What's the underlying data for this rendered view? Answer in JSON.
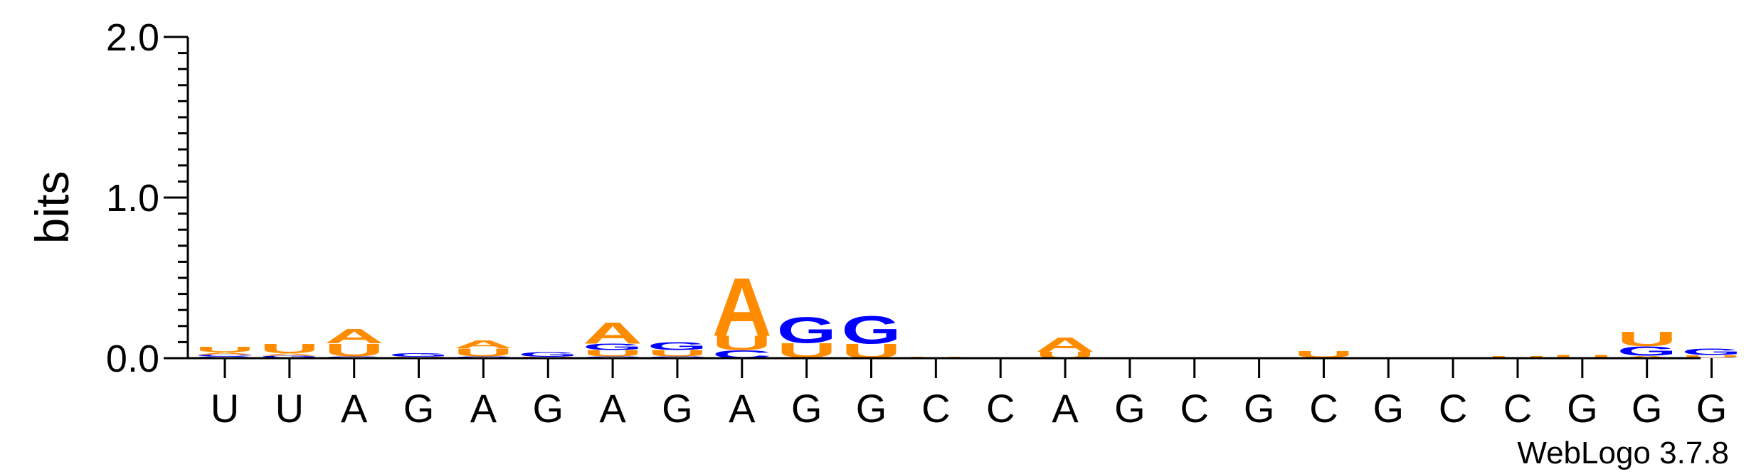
{
  "chart_data": {
    "type": "sequence-logo",
    "ylabel": "bits",
    "ylim": [
      0,
      2.0
    ],
    "yticks": [
      "0.0",
      "1.0",
      "2.0"
    ],
    "credit": "WebLogo 3.7.8",
    "colors": {
      "A": "#ff8c00",
      "U": "#ff8c00",
      "G": "#0000ff",
      "C": "#0000ff"
    },
    "positions": [
      {
        "label": "U",
        "stack": [
          {
            "letter": "G",
            "bits": 0.012
          },
          {
            "letter": "C",
            "bits": 0.01
          },
          {
            "letter": "A",
            "bits": 0.015
          },
          {
            "letter": "U",
            "bits": 0.035
          }
        ]
      },
      {
        "label": "U",
        "stack": [
          {
            "letter": "C",
            "bits": 0.005
          },
          {
            "letter": "G",
            "bits": 0.01
          },
          {
            "letter": "A",
            "bits": 0.015
          },
          {
            "letter": "U",
            "bits": 0.06
          }
        ]
      },
      {
        "label": "A",
        "stack": [
          {
            "letter": "G",
            "bits": 0.012
          },
          {
            "letter": "U",
            "bits": 0.08
          },
          {
            "letter": "A",
            "bits": 0.09
          }
        ]
      },
      {
        "label": "G",
        "stack": [
          {
            "letter": "U",
            "bits": 0.008
          },
          {
            "letter": "G",
            "bits": 0.022
          }
        ]
      },
      {
        "label": "A",
        "stack": [
          {
            "letter": "C",
            "bits": 0.012
          },
          {
            "letter": "U",
            "bits": 0.05
          },
          {
            "letter": "A",
            "bits": 0.05
          }
        ]
      },
      {
        "label": "G",
        "stack": [
          {
            "letter": "U",
            "bits": 0.008
          },
          {
            "letter": "G",
            "bits": 0.03
          }
        ]
      },
      {
        "label": "A",
        "stack": [
          {
            "letter": "C",
            "bits": 0.01
          },
          {
            "letter": "U",
            "bits": 0.04
          },
          {
            "letter": "G",
            "bits": 0.04
          },
          {
            "letter": "A",
            "bits": 0.135
          }
        ]
      },
      {
        "label": "G",
        "stack": [
          {
            "letter": "C",
            "bits": 0.01
          },
          {
            "letter": "U",
            "bits": 0.04
          },
          {
            "letter": "G",
            "bits": 0.05
          }
        ]
      },
      {
        "label": "A",
        "stack": [
          {
            "letter": "C",
            "bits": 0.05
          },
          {
            "letter": "U",
            "bits": 0.09
          },
          {
            "letter": "A",
            "bits": 0.37
          }
        ]
      },
      {
        "label": "G",
        "stack": [
          {
            "letter": "A",
            "bits": 0.005
          },
          {
            "letter": "U",
            "bits": 0.09
          },
          {
            "letter": "G",
            "bits": 0.165
          }
        ]
      },
      {
        "label": "G",
        "stack": [
          {
            "letter": "U",
            "bits": 0.09
          },
          {
            "letter": "G",
            "bits": 0.175
          }
        ]
      },
      {
        "label": "C",
        "stack": [
          {
            "letter": "U",
            "bits": 0.007
          }
        ]
      },
      {
        "label": "C",
        "stack": [
          {
            "letter": "U",
            "bits": 0.004
          }
        ]
      },
      {
        "label": "A",
        "stack": [
          {
            "letter": "U",
            "bits": 0.04
          },
          {
            "letter": "A",
            "bits": 0.09
          }
        ]
      },
      {
        "label": "G",
        "stack": []
      },
      {
        "label": "C",
        "stack": []
      },
      {
        "label": "G",
        "stack": []
      },
      {
        "label": "C",
        "stack": [
          {
            "letter": "C",
            "bits": 0.005
          },
          {
            "letter": "U",
            "bits": 0.04
          }
        ]
      },
      {
        "label": "G",
        "stack": []
      },
      {
        "label": "C",
        "stack": []
      },
      {
        "label": "C",
        "stack": [
          {
            "letter": "U",
            "bits": 0.015
          }
        ]
      },
      {
        "label": "G",
        "stack": [
          {
            "letter": "U",
            "bits": 0.02
          }
        ]
      },
      {
        "label": "G",
        "stack": [
          {
            "letter": "A",
            "bits": 0.015
          },
          {
            "letter": "G",
            "bits": 0.06
          },
          {
            "letter": "U",
            "bits": 0.09
          }
        ]
      },
      {
        "label": "G",
        "stack": [
          {
            "letter": "C",
            "bits": 0.005
          },
          {
            "letter": "U",
            "bits": 0.015
          },
          {
            "letter": "G",
            "bits": 0.04
          }
        ]
      }
    ]
  }
}
